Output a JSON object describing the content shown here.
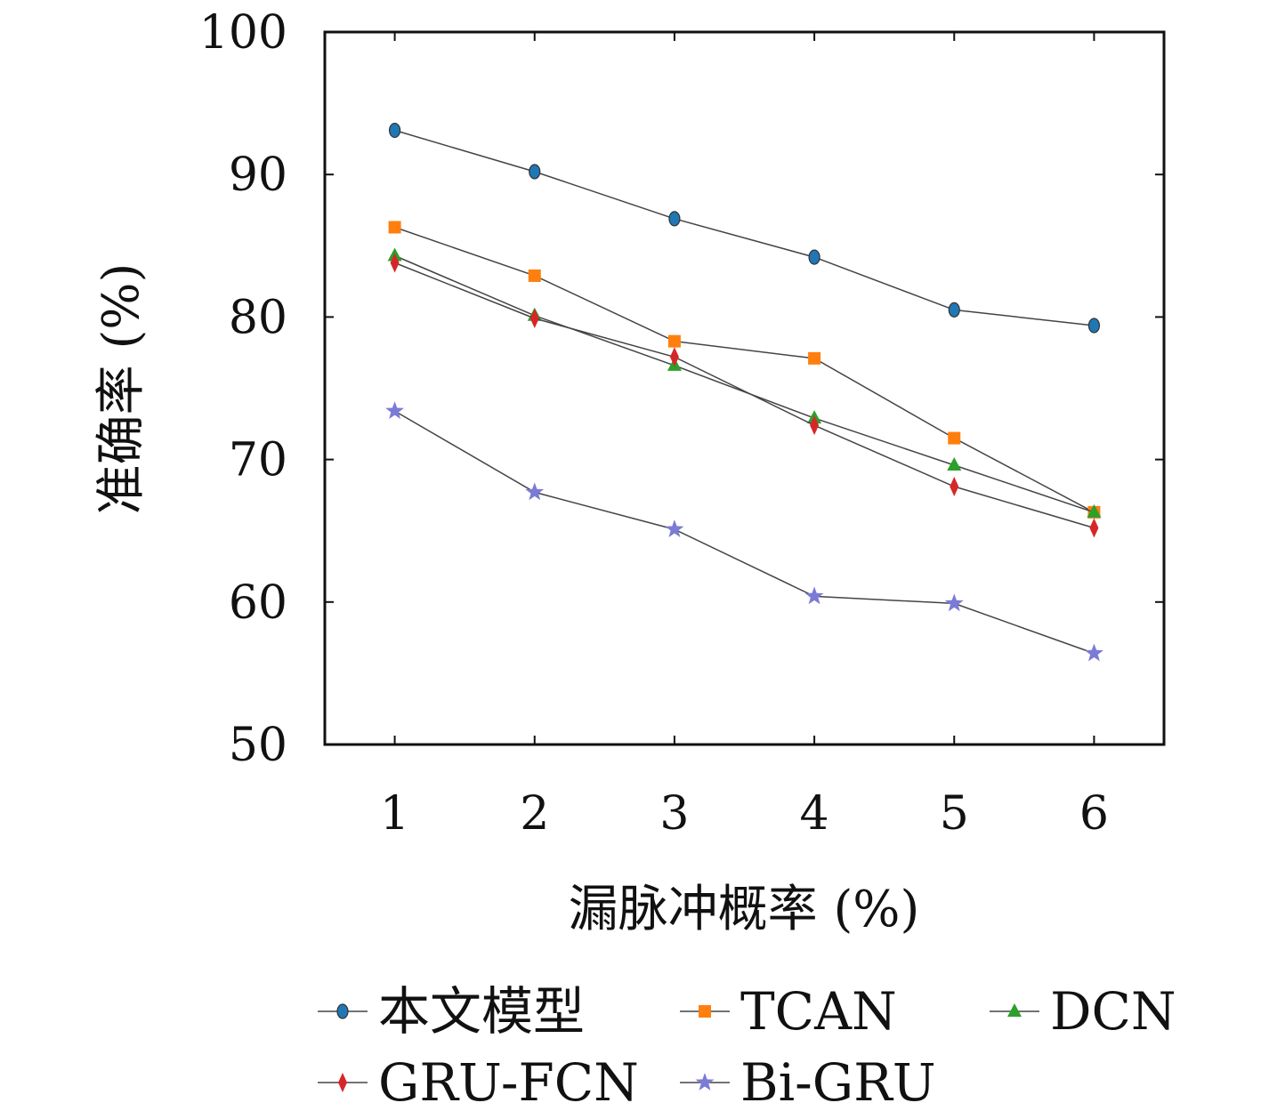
{
  "chart_data": {
    "type": "line",
    "xlabel": "漏脉冲概率 (%)",
    "ylabel": "准确率 (%)",
    "x": [
      1,
      2,
      3,
      4,
      5,
      6
    ],
    "xlim": [
      0.5,
      6.5
    ],
    "ylim": [
      50,
      100
    ],
    "yticks": [
      50,
      60,
      70,
      80,
      90,
      100
    ],
    "xticks": [
      1,
      2,
      3,
      4,
      5,
      6
    ],
    "grid": false,
    "legend_position": "bottom",
    "series": [
      {
        "name": "本文模型",
        "marker": "circle",
        "color": "#1f77b4",
        "values": [
          93.1,
          90.2,
          86.9,
          84.2,
          80.5,
          79.4
        ]
      },
      {
        "name": "TCAN",
        "marker": "square",
        "color": "#ff7f0e",
        "values": [
          86.3,
          82.9,
          78.3,
          77.1,
          71.5,
          66.3
        ]
      },
      {
        "name": "DCN",
        "marker": "triangle",
        "color": "#2ca02c",
        "values": [
          84.3,
          80.1,
          76.6,
          72.9,
          69.6,
          66.3
        ]
      },
      {
        "name": "GRU-FCN",
        "marker": "diamond",
        "color": "#d62728",
        "values": [
          83.8,
          79.9,
          77.2,
          72.4,
          68.1,
          65.2
        ]
      },
      {
        "name": "Bi-GRU",
        "marker": "star",
        "color": "#7b7bd6",
        "values": [
          73.4,
          67.7,
          65.1,
          60.4,
          59.9,
          56.4
        ]
      }
    ]
  }
}
